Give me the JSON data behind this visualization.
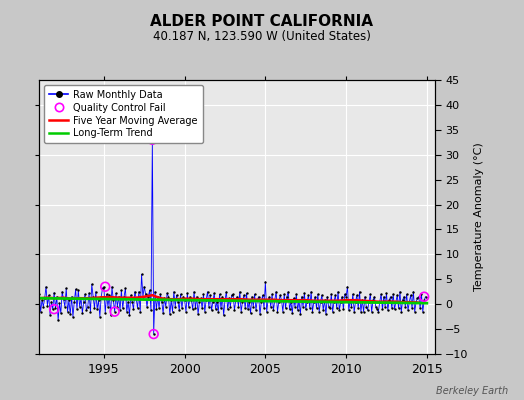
{
  "title": "ALDER POINT CALIFORNIA",
  "subtitle": "40.187 N, 123.590 W (United States)",
  "ylabel_right": "Temperature Anomaly (°C)",
  "watermark": "Berkeley Earth",
  "xlim": [
    1991.0,
    2015.5
  ],
  "ylim": [
    -10,
    45
  ],
  "yticks": [
    -10,
    -5,
    0,
    5,
    10,
    15,
    20,
    25,
    30,
    35,
    40,
    45
  ],
  "xticks": [
    1995,
    2000,
    2005,
    2010,
    2015
  ],
  "bg_color": "#c8c8c8",
  "plot_bg_color": "#e8e8e8",
  "raw_color": "#0000ff",
  "raw_marker_color": "#000000",
  "qc_color": "#ff00ff",
  "moving_avg_color": "#ff0000",
  "trend_color": "#00cc00",
  "raw_data_x": [
    1991.0,
    1991.083,
    1991.167,
    1991.25,
    1991.333,
    1991.417,
    1991.5,
    1991.583,
    1991.667,
    1991.75,
    1991.833,
    1991.917,
    1992.0,
    1992.083,
    1992.167,
    1992.25,
    1992.333,
    1992.417,
    1992.5,
    1992.583,
    1992.667,
    1992.75,
    1992.833,
    1992.917,
    1993.0,
    1993.083,
    1993.167,
    1993.25,
    1993.333,
    1993.417,
    1993.5,
    1993.583,
    1993.667,
    1993.75,
    1993.833,
    1993.917,
    1994.0,
    1994.083,
    1994.167,
    1994.25,
    1994.333,
    1994.417,
    1994.5,
    1994.583,
    1994.667,
    1994.75,
    1994.833,
    1994.917,
    1995.0,
    1995.083,
    1995.167,
    1995.25,
    1995.333,
    1995.417,
    1995.5,
    1995.583,
    1995.667,
    1995.75,
    1995.833,
    1995.917,
    1996.0,
    1996.083,
    1996.167,
    1996.25,
    1996.333,
    1996.417,
    1996.5,
    1996.583,
    1996.667,
    1996.75,
    1996.833,
    1996.917,
    1997.0,
    1997.083,
    1997.167,
    1997.25,
    1997.333,
    1997.417,
    1997.5,
    1997.583,
    1997.667,
    1997.75,
    1997.833,
    1997.917,
    1998.0,
    1998.083,
    1998.167,
    1998.25,
    1998.333,
    1998.417,
    1998.5,
    1998.583,
    1998.667,
    1998.75,
    1998.833,
    1998.917,
    1999.0,
    1999.083,
    1999.167,
    1999.25,
    1999.333,
    1999.417,
    1999.5,
    1999.583,
    1999.667,
    1999.75,
    1999.833,
    1999.917,
    2000.0,
    2000.083,
    2000.167,
    2000.25,
    2000.333,
    2000.417,
    2000.5,
    2000.583,
    2000.667,
    2000.75,
    2000.833,
    2000.917,
    2001.0,
    2001.083,
    2001.167,
    2001.25,
    2001.333,
    2001.417,
    2001.5,
    2001.583,
    2001.667,
    2001.75,
    2001.833,
    2001.917,
    2002.0,
    2002.083,
    2002.167,
    2002.25,
    2002.333,
    2002.417,
    2002.5,
    2002.583,
    2002.667,
    2002.75,
    2002.833,
    2002.917,
    2003.0,
    2003.083,
    2003.167,
    2003.25,
    2003.333,
    2003.417,
    2003.5,
    2003.583,
    2003.667,
    2003.75,
    2003.833,
    2003.917,
    2004.0,
    2004.083,
    2004.167,
    2004.25,
    2004.333,
    2004.417,
    2004.5,
    2004.583,
    2004.667,
    2004.75,
    2004.833,
    2004.917,
    2005.0,
    2005.083,
    2005.167,
    2005.25,
    2005.333,
    2005.417,
    2005.5,
    2005.583,
    2005.667,
    2005.75,
    2005.833,
    2005.917,
    2006.0,
    2006.083,
    2006.167,
    2006.25,
    2006.333,
    2006.417,
    2006.5,
    2006.583,
    2006.667,
    2006.75,
    2006.833,
    2006.917,
    2007.0,
    2007.083,
    2007.167,
    2007.25,
    2007.333,
    2007.417,
    2007.5,
    2007.583,
    2007.667,
    2007.75,
    2007.833,
    2007.917,
    2008.0,
    2008.083,
    2008.167,
    2008.25,
    2008.333,
    2008.417,
    2008.5,
    2008.583,
    2008.667,
    2008.75,
    2008.833,
    2008.917,
    2009.0,
    2009.083,
    2009.167,
    2009.25,
    2009.333,
    2009.417,
    2009.5,
    2009.583,
    2009.667,
    2009.75,
    2009.833,
    2009.917,
    2010.0,
    2010.083,
    2010.167,
    2010.25,
    2010.333,
    2010.417,
    2010.5,
    2010.583,
    2010.667,
    2010.75,
    2010.833,
    2010.917,
    2011.0,
    2011.083,
    2011.167,
    2011.25,
    2011.333,
    2011.417,
    2011.5,
    2011.583,
    2011.667,
    2011.75,
    2011.833,
    2011.917,
    2012.0,
    2012.083,
    2012.167,
    2012.25,
    2012.333,
    2012.417,
    2012.5,
    2012.583,
    2012.667,
    2012.75,
    2012.833,
    2012.917,
    2013.0,
    2013.083,
    2013.167,
    2013.25,
    2013.333,
    2013.417,
    2013.5,
    2013.583,
    2013.667,
    2013.75,
    2013.833,
    2013.917,
    2014.0,
    2014.083,
    2014.167,
    2014.25,
    2014.333,
    2014.417,
    2014.5,
    2014.583,
    2014.667,
    2014.75,
    2014.833,
    2014.917
  ],
  "raw_data_y": [
    2.1,
    -1.5,
    0.8,
    -0.5,
    1.2,
    3.5,
    -0.3,
    1.8,
    -2.1,
    0.5,
    -1.0,
    2.3,
    -0.8,
    1.5,
    -3.2,
    0.2,
    -1.8,
    2.5,
    1.0,
    -0.5,
    3.2,
    -1.5,
    0.8,
    -2.0,
    1.5,
    -2.5,
    0.5,
    3.0,
    -1.0,
    2.8,
    -0.5,
    1.2,
    -1.8,
    0.5,
    2.0,
    -1.2,
    -0.5,
    2.2,
    -1.5,
    4.0,
    1.5,
    -0.8,
    2.5,
    -1.0,
    0.8,
    -2.5,
    1.5,
    3.2,
    3.5,
    -1.8,
    2.0,
    -0.5,
    1.8,
    -2.2,
    3.5,
    0.8,
    -1.5,
    2.2,
    -0.5,
    1.5,
    -1.2,
    2.8,
    -0.8,
    1.5,
    3.2,
    -1.5,
    0.5,
    -2.2,
    1.8,
    0.5,
    -1.0,
    2.5,
    1.2,
    -0.8,
    2.5,
    -1.5,
    6.0,
    1.5,
    3.5,
    2.0,
    -0.5,
    1.5,
    2.8,
    -1.2,
    33.0,
    -6.0,
    2.5,
    -1.0,
    1.5,
    -0.8,
    2.0,
    0.5,
    -1.8,
    1.2,
    -0.5,
    2.2,
    1.5,
    -2.0,
    0.8,
    -1.5,
    2.5,
    -0.5,
    1.8,
    0.5,
    -1.2,
    2.0,
    -0.8,
    1.5,
    0.8,
    -1.5,
    2.2,
    -0.5,
    1.5,
    0.8,
    -1.0,
    2.5,
    -0.8,
    1.5,
    -2.0,
    0.5,
    1.2,
    -0.8,
    2.0,
    -1.5,
    0.8,
    2.5,
    -0.5,
    1.8,
    -1.2,
    0.5,
    2.2,
    -1.0,
    0.5,
    -1.5,
    2.0,
    -0.8,
    1.5,
    -2.2,
    0.8,
    2.5,
    -1.0,
    1.2,
    -0.5,
    1.8,
    2.0,
    -1.2,
    0.8,
    1.5,
    -0.5,
    2.5,
    -1.5,
    0.5,
    1.8,
    -0.8,
    2.2,
    -1.0,
    0.5,
    -1.8,
    1.5,
    -0.5,
    2.0,
    -1.2,
    0.8,
    1.5,
    -2.0,
    0.5,
    1.8,
    -0.8,
    4.5,
    -1.5,
    0.8,
    1.5,
    -0.5,
    2.0,
    -1.2,
    0.8,
    2.5,
    -1.5,
    0.5,
    1.8,
    0.8,
    -1.5,
    2.0,
    -0.8,
    1.5,
    2.5,
    -1.0,
    0.5,
    -1.8,
    1.2,
    -0.5,
    2.0,
    -1.2,
    0.8,
    -2.0,
    1.5,
    -0.5,
    2.2,
    -1.0,
    0.5,
    1.8,
    -0.8,
    2.5,
    -1.5,
    0.5,
    1.5,
    -0.8,
    2.0,
    -1.5,
    0.5,
    1.8,
    -1.2,
    0.8,
    -2.0,
    1.5,
    -0.5,
    -0.8,
    2.0,
    -1.5,
    0.5,
    1.8,
    -0.8,
    2.5,
    -1.2,
    0.5,
    1.5,
    -1.0,
    2.0,
    1.5,
    3.5,
    -1.2,
    0.8,
    -0.5,
    2.0,
    -1.5,
    0.5,
    1.8,
    -0.8,
    2.5,
    -1.5,
    0.8,
    -1.5,
    1.5,
    -0.5,
    -1.2,
    0.5,
    2.0,
    -1.5,
    0.8,
    1.5,
    -0.5,
    -1.0,
    -1.5,
    0.5,
    2.0,
    -1.0,
    1.5,
    -0.5,
    2.2,
    -1.2,
    0.8,
    1.5,
    -0.8,
    2.0,
    -1.0,
    0.5,
    1.8,
    -0.8,
    2.5,
    -1.5,
    0.8,
    1.5,
    -0.5,
    2.0,
    -1.2,
    0.5,
    1.8,
    -0.8,
    2.5,
    -1.5,
    0.5,
    1.2,
    1.5,
    -0.8,
    2.0,
    -1.5,
    0.8,
    1.5
  ],
  "qc_x": [
    1991.917,
    1995.083,
    1995.667,
    1998.0,
    1998.083,
    2014.833
  ],
  "qc_y": [
    -1.0,
    3.5,
    -1.5,
    33.0,
    -6.0,
    1.5
  ],
  "moving_avg_x": [
    1991.0,
    1991.5,
    1992.0,
    1992.5,
    1993.0,
    1993.5,
    1994.0,
    1994.5,
    1995.0,
    1995.5,
    1996.0,
    1996.5,
    1997.0,
    1997.5,
    1998.0,
    1998.5,
    1999.0,
    1999.5,
    2000.0,
    2000.5,
    2001.0,
    2001.5,
    2002.0,
    2002.5,
    2003.0,
    2003.5,
    2004.0,
    2004.5,
    2005.0,
    2005.5,
    2006.0,
    2006.5,
    2007.0,
    2007.5,
    2008.0,
    2008.5,
    2009.0,
    2009.5,
    2010.0,
    2010.5,
    2011.0,
    2011.5,
    2012.0,
    2012.5,
    2013.0,
    2013.5,
    2014.0,
    2014.5
  ],
  "moving_avg_y": [
    1.2,
    1.3,
    1.2,
    1.3,
    1.1,
    1.2,
    1.2,
    1.3,
    1.4,
    1.4,
    1.3,
    1.3,
    1.3,
    1.5,
    1.8,
    1.2,
    1.0,
    1.0,
    1.1,
    1.1,
    1.0,
    1.0,
    1.0,
    1.0,
    1.0,
    1.0,
    0.9,
    0.9,
    0.9,
    0.9,
    0.8,
    0.8,
    0.8,
    0.8,
    0.7,
    0.7,
    0.7,
    0.7,
    0.8,
    0.8,
    0.7,
    0.6,
    0.5,
    0.5,
    0.5,
    0.4,
    0.4,
    0.3
  ],
  "trend_x": [
    1991.0,
    2015.0
  ],
  "trend_y": [
    1.2,
    0.2
  ]
}
